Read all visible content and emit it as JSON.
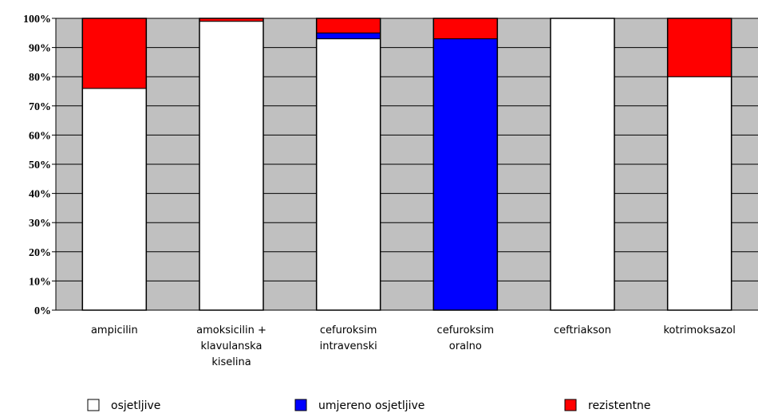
{
  "chart_data": {
    "type": "bar",
    "stacked": true,
    "categories": [
      [
        "ampicilin"
      ],
      [
        "amoksicilin +",
        "klavulanska",
        "kiselina"
      ],
      [
        "cefuroksim",
        "intravenski"
      ],
      [
        "cefuroksim",
        "oralno"
      ],
      [
        "ceftriakson"
      ],
      [
        "kotrimoksazol"
      ]
    ],
    "series": [
      {
        "name": "osjetljive",
        "color": "#ffffff",
        "values": [
          76,
          99,
          93,
          0,
          100,
          80
        ]
      },
      {
        "name": "umjereno osjetljive",
        "color": "#0000ff",
        "values": [
          0,
          0,
          2,
          93,
          0,
          0
        ]
      },
      {
        "name": "rezistentne",
        "color": "#ff0000",
        "values": [
          24,
          1,
          5,
          7,
          0,
          20
        ]
      }
    ],
    "yticks": [
      "0%",
      "10%",
      "20%",
      "30%",
      "40%",
      "50%",
      "60%",
      "70%",
      "80%",
      "90%",
      "100%"
    ],
    "ylim": [
      0,
      100
    ],
    "grid": true,
    "plot_background": "#c0c0c0",
    "legend_position": "bottom"
  }
}
